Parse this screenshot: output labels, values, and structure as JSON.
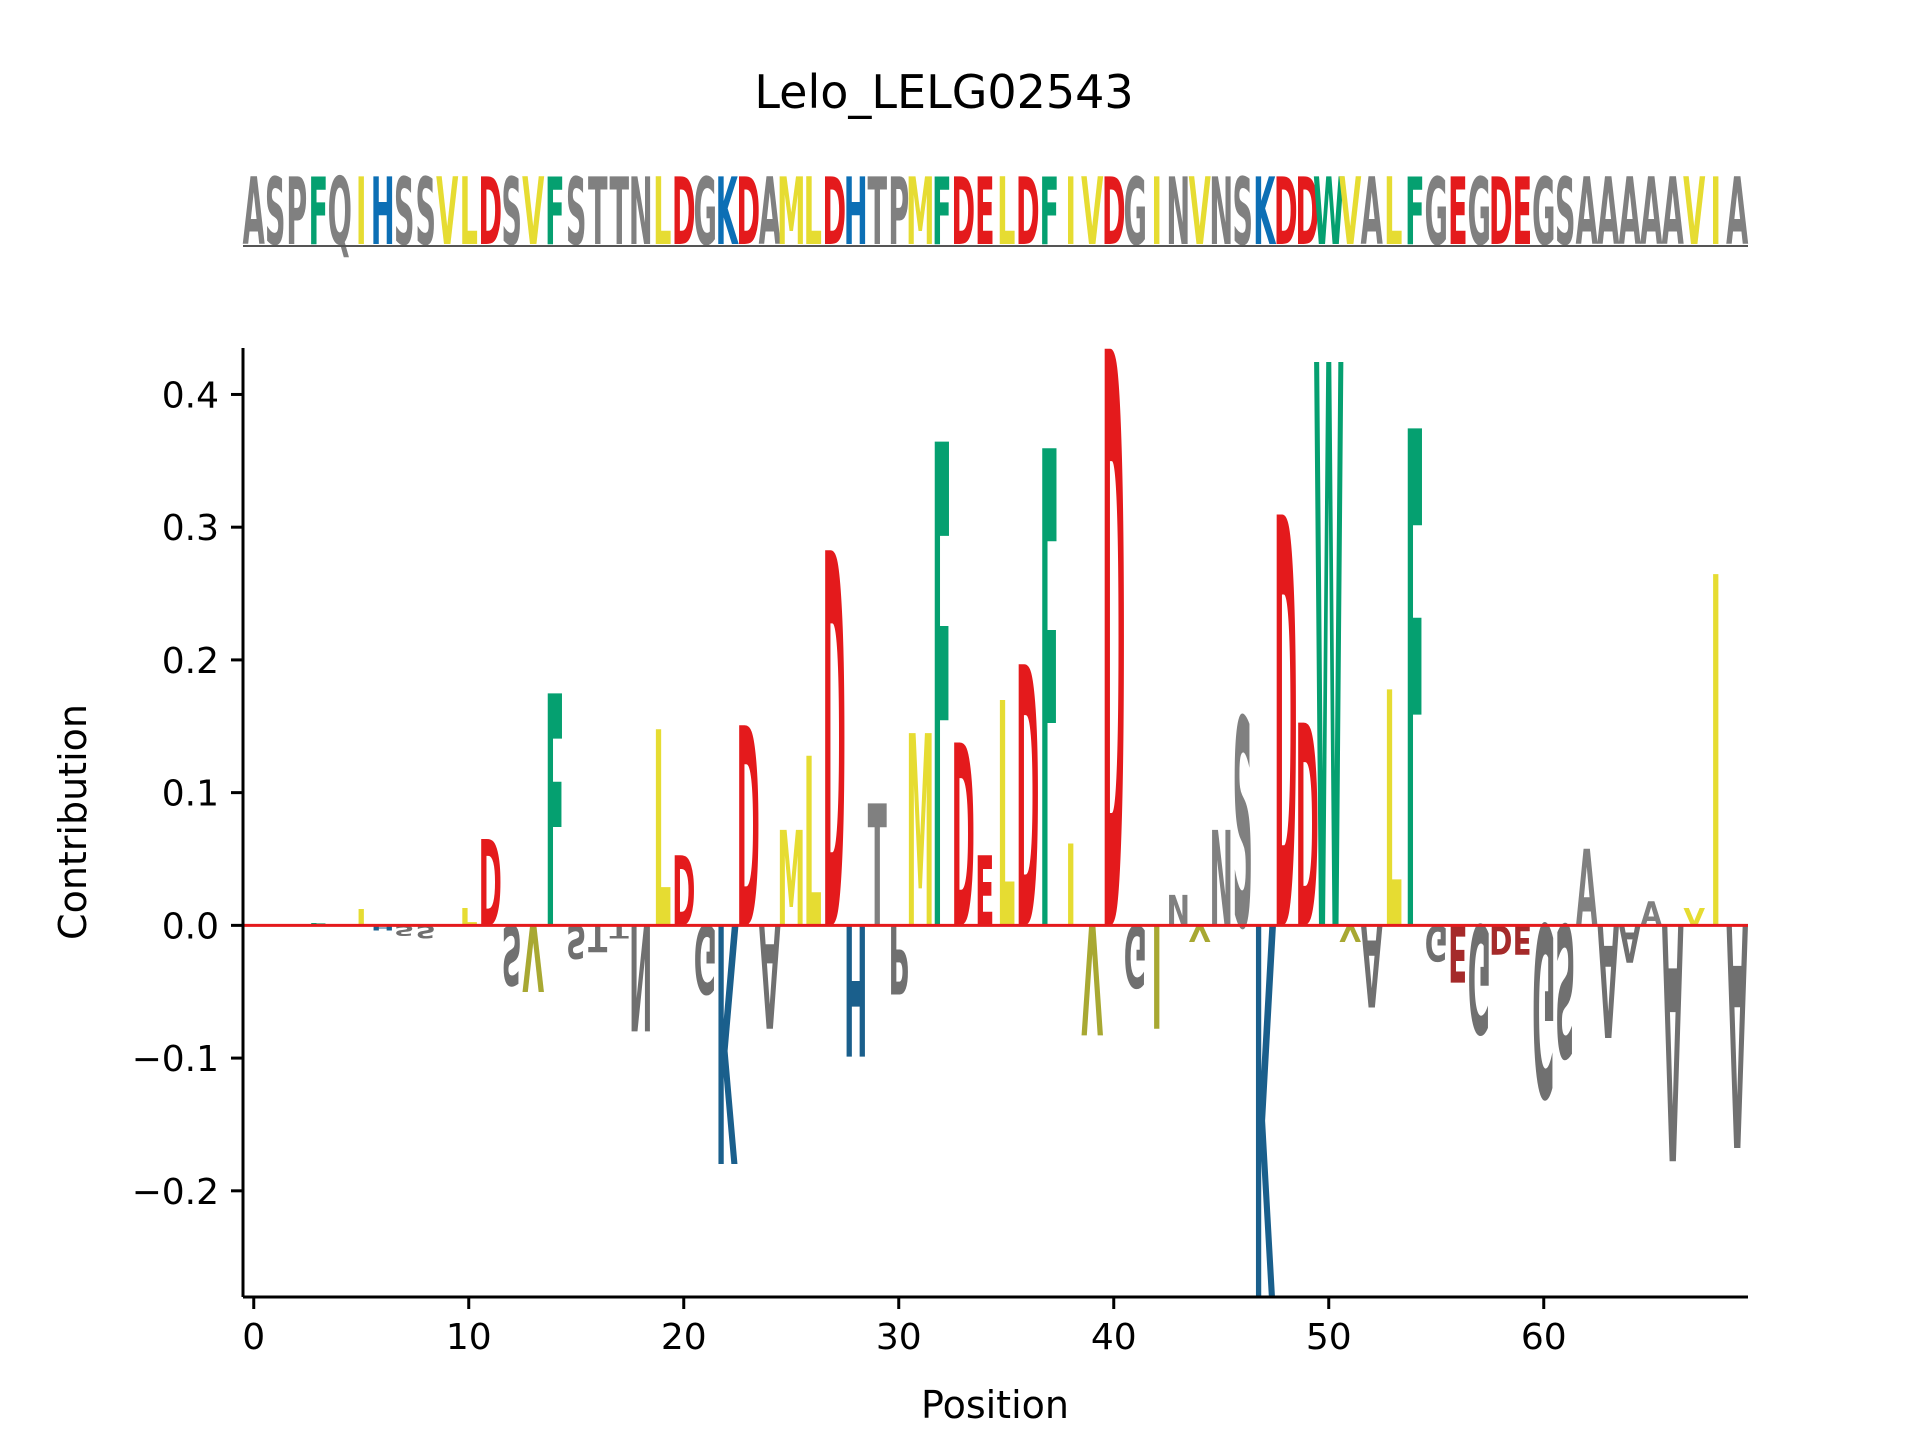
{
  "chart_data": {
    "type": "sequence-logo",
    "title": "Lelo_LELG02543",
    "xlabel": "Position",
    "ylabel": "Contribution",
    "xlim": [
      -0.5,
      69.5
    ],
    "ylim": [
      -0.28,
      0.435
    ],
    "xticks": [
      0,
      10,
      20,
      30,
      40,
      50,
      60
    ],
    "yticks": [
      0.4,
      0.3,
      0.2,
      0.1,
      0.0,
      -0.1,
      -0.2
    ],
    "ytick_labels": [
      "0.4",
      "0.3",
      "0.2",
      "0.1",
      "0.0",
      "−0.1",
      "−0.2"
    ],
    "xtick_labels": [
      "0",
      "10",
      "20",
      "30",
      "40",
      "50",
      "60"
    ],
    "baseline_color": "#e41a1c",
    "sequence": "ASPFQIHSSVLDSVFSTTNLDGKDAMLDHTPMFDELDFIVDGINVNSKDDWVALFGEGDEGSAAAAAVIA",
    "colors": {
      "F": "#05a070",
      "W": "#05a070",
      "D": "#e41a1c",
      "E": "#e41a1c",
      "K": "#0c6fb5",
      "H": "#0c6fb5",
      "R": "#0c6fb5",
      "L": "#e6dc32",
      "I": "#e6dc32",
      "V": "#e6dc32",
      "M": "#e6dc32",
      "A": "#808080",
      "S": "#808080",
      "P": "#808080",
      "Q": "#808080",
      "T": "#808080",
      "N": "#808080",
      "G": "#808080",
      "Y": "#808080",
      "C": "#808080"
    },
    "negative_colors": {
      "K": "#1a5f8c",
      "H": "#1a5f8c",
      "D": "#a52a2a",
      "E": "#a52a2a",
      "V": "#a8a832",
      "I": "#a8a832",
      "L": "#a8a832",
      "M": "#a8a832"
    },
    "positions": [
      {
        "pos": 3,
        "letters": [
          [
            "F",
            0.002
          ]
        ]
      },
      {
        "pos": 5,
        "letters": [
          [
            "I",
            0.012
          ]
        ]
      },
      {
        "pos": 6,
        "letters": [
          [
            "H",
            -0.004
          ]
        ]
      },
      {
        "pos": 7,
        "letters": [
          [
            "S",
            -0.008
          ]
        ]
      },
      {
        "pos": 8,
        "letters": [
          [
            "S",
            -0.01
          ]
        ]
      },
      {
        "pos": 9,
        "letters": [
          [
            "V",
            0.001
          ]
        ]
      },
      {
        "pos": 10,
        "letters": [
          [
            "L",
            0.013
          ]
        ]
      },
      {
        "pos": 11,
        "letters": [
          [
            "D",
            0.065
          ]
        ]
      },
      {
        "pos": 12,
        "letters": [
          [
            "S",
            -0.045
          ]
        ]
      },
      {
        "pos": 13,
        "letters": [
          [
            "V",
            -0.05
          ]
        ]
      },
      {
        "pos": 14,
        "letters": [
          [
            "F",
            0.175
          ]
        ]
      },
      {
        "pos": 15,
        "letters": [
          [
            "S",
            -0.025
          ]
        ]
      },
      {
        "pos": 16,
        "letters": [
          [
            "T",
            -0.02
          ]
        ]
      },
      {
        "pos": 17,
        "letters": [
          [
            "T",
            -0.01
          ]
        ]
      },
      {
        "pos": 18,
        "letters": [
          [
            "N",
            -0.08
          ]
        ]
      },
      {
        "pos": 19,
        "letters": [
          [
            "L",
            0.148
          ]
        ]
      },
      {
        "pos": 20,
        "letters": [
          [
            "D",
            0.053
          ]
        ]
      },
      {
        "pos": 21,
        "letters": [
          [
            "G",
            -0.052
          ]
        ]
      },
      {
        "pos": 22,
        "letters": [
          [
            "K",
            -0.18
          ]
        ]
      },
      {
        "pos": 23,
        "letters": [
          [
            "D",
            0.151
          ]
        ]
      },
      {
        "pos": 24,
        "letters": [
          [
            "A",
            -0.078
          ]
        ]
      },
      {
        "pos": 25,
        "letters": [
          [
            "M",
            0.072
          ]
        ]
      },
      {
        "pos": 26,
        "letters": [
          [
            "L",
            0.128
          ]
        ]
      },
      {
        "pos": 27,
        "letters": [
          [
            "D",
            0.283
          ]
        ]
      },
      {
        "pos": 28,
        "letters": [
          [
            "H",
            -0.099
          ]
        ]
      },
      {
        "pos": 29,
        "letters": [
          [
            "T",
            0.092
          ]
        ]
      },
      {
        "pos": 30,
        "letters": [
          [
            "P",
            -0.052
          ]
        ]
      },
      {
        "pos": 31,
        "letters": [
          [
            "M",
            0.145
          ]
        ]
      },
      {
        "pos": 32,
        "letters": [
          [
            "F",
            0.365
          ]
        ]
      },
      {
        "pos": 33,
        "letters": [
          [
            "D",
            0.138
          ]
        ]
      },
      {
        "pos": 34,
        "letters": [
          [
            "E",
            0.053
          ]
        ]
      },
      {
        "pos": 35,
        "letters": [
          [
            "L",
            0.17
          ]
        ]
      },
      {
        "pos": 36,
        "letters": [
          [
            "D",
            0.197
          ]
        ]
      },
      {
        "pos": 37,
        "letters": [
          [
            "F",
            0.36
          ]
        ]
      },
      {
        "pos": 38,
        "letters": [
          [
            "I",
            0.062
          ]
        ]
      },
      {
        "pos": 39,
        "letters": [
          [
            "V",
            -0.083
          ]
        ]
      },
      {
        "pos": 40,
        "letters": [
          [
            "D",
            0.435
          ]
        ]
      },
      {
        "pos": 41,
        "letters": [
          [
            "G",
            -0.047
          ]
        ]
      },
      {
        "pos": 42,
        "letters": [
          [
            "I",
            -0.078
          ]
        ]
      },
      {
        "pos": 43,
        "letters": [
          [
            "N",
            0.023
          ]
        ]
      },
      {
        "pos": 44,
        "letters": [
          [
            "V",
            -0.012
          ]
        ]
      },
      {
        "pos": 45,
        "letters": [
          [
            "N",
            0.072
          ]
        ]
      },
      {
        "pos": 46,
        "letters": [
          [
            "S",
            0.157
          ]
        ]
      },
      {
        "pos": 47,
        "letters": [
          [
            "K",
            -0.28
          ]
        ]
      },
      {
        "pos": 48,
        "letters": [
          [
            "D",
            0.31
          ]
        ]
      },
      {
        "pos": 49,
        "letters": [
          [
            "D",
            0.153
          ]
        ]
      },
      {
        "pos": 50,
        "letters": [
          [
            "W",
            0.425
          ]
        ]
      },
      {
        "pos": 51,
        "letters": [
          [
            "V",
            -0.012
          ]
        ]
      },
      {
        "pos": 52,
        "letters": [
          [
            "A",
            -0.062
          ]
        ]
      },
      {
        "pos": 53,
        "letters": [
          [
            "L",
            0.178
          ]
        ]
      },
      {
        "pos": 54,
        "letters": [
          [
            "F",
            0.375
          ]
        ]
      },
      {
        "pos": 55,
        "letters": [
          [
            "G",
            -0.027
          ]
        ]
      },
      {
        "pos": 56,
        "letters": [
          [
            "E",
            -0.043
          ]
        ]
      },
      {
        "pos": 57,
        "letters": [
          [
            "G",
            -0.082
          ]
        ]
      },
      {
        "pos": 58,
        "letters": [
          [
            "D",
            -0.022
          ]
        ]
      },
      {
        "pos": 59,
        "letters": [
          [
            "E",
            -0.022
          ]
        ]
      },
      {
        "pos": 60,
        "letters": [
          [
            "G",
            -0.13
          ]
        ]
      },
      {
        "pos": 61,
        "letters": [
          [
            "S",
            -0.1
          ]
        ]
      },
      {
        "pos": 62,
        "letters": [
          [
            "A",
            0.058
          ]
        ]
      },
      {
        "pos": 63,
        "letters": [
          [
            "A",
            -0.085
          ]
        ]
      },
      {
        "pos": 64,
        "letters": [
          [
            "A",
            -0.028
          ]
        ]
      },
      {
        "pos": 65,
        "letters": [
          [
            "A",
            0.018
          ]
        ]
      },
      {
        "pos": 66,
        "letters": [
          [
            "A",
            -0.178
          ]
        ]
      },
      {
        "pos": 67,
        "letters": [
          [
            "V",
            0.013
          ]
        ]
      },
      {
        "pos": 68,
        "letters": [
          [
            "I",
            0.265
          ]
        ]
      },
      {
        "pos": 69,
        "letters": [
          [
            "A",
            -0.168
          ]
        ]
      }
    ]
  }
}
